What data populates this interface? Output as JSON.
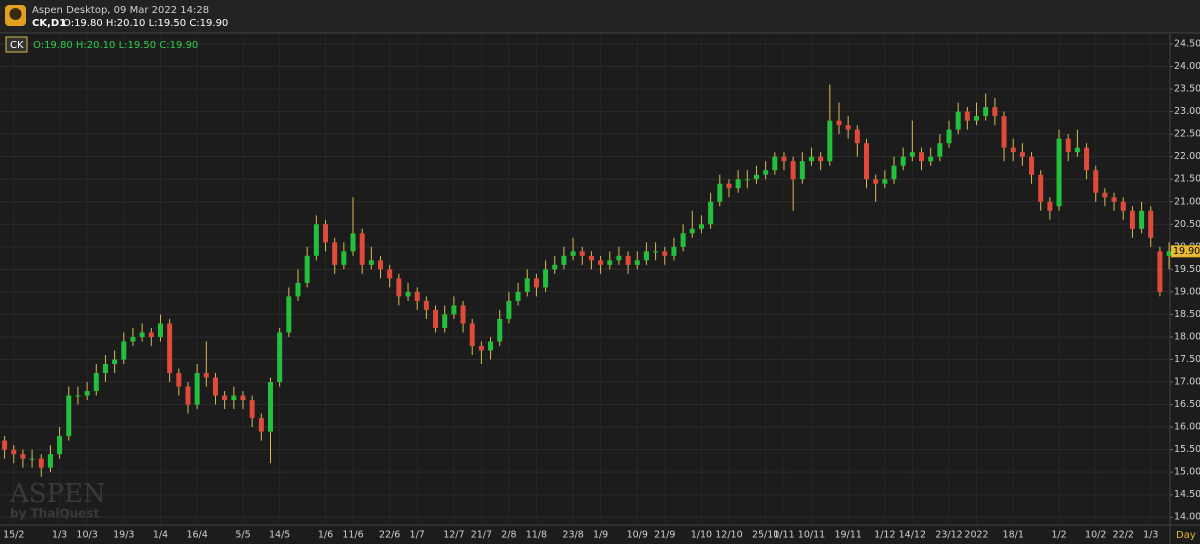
{
  "header": {
    "title": "Aspen Desktop, 09 Mar 2022 14:28",
    "symbol": "CK,D1",
    "quote": "O:19.80 H:20.10 L:19.50 C:19.90"
  },
  "chart_data": {
    "type": "candlestick",
    "legend": {
      "symbol": "CK",
      "quote": "O:19.80 H:20.10 L:19.50 C:19.90"
    },
    "watermark": {
      "brand": "ASPEN",
      "by": "by ThaiQuest"
    },
    "period": "Day",
    "up_color": "#22c03c",
    "down_color": "#e04a3a",
    "wick_color": "#d9bb55",
    "grid": true,
    "xlim": [
      -0.5,
      127.1
    ],
    "ylim": [
      13.85,
      24.7
    ],
    "last_price": {
      "value": 19.9,
      "label": "19.90"
    },
    "yticks": [
      {
        "value": 14,
        "label": "14.00"
      },
      {
        "value": 14.5,
        "label": "14.50"
      },
      {
        "value": 15,
        "label": "15.00"
      },
      {
        "value": 15.5,
        "label": "15.50"
      },
      {
        "value": 16,
        "label": "16.00"
      },
      {
        "value": 16.5,
        "label": "16.50"
      },
      {
        "value": 17,
        "label": "17.00"
      },
      {
        "value": 17.5,
        "label": "17.50"
      },
      {
        "value": 18,
        "label": "18.00"
      },
      {
        "value": 18.5,
        "label": "18.50"
      },
      {
        "value": 19,
        "label": "19.00"
      },
      {
        "value": 19.5,
        "label": "19.50"
      },
      {
        "value": 20,
        "label": "20.00"
      },
      {
        "value": 20.5,
        "label": "20.50"
      },
      {
        "value": 21,
        "label": "21.00"
      },
      {
        "value": 21.5,
        "label": "21.50"
      },
      {
        "value": 22,
        "label": "22.00"
      },
      {
        "value": 22.5,
        "label": "22.50"
      },
      {
        "value": 23,
        "label": "23.00"
      },
      {
        "value": 23.5,
        "label": "23.50"
      },
      {
        "value": 24,
        "label": "24.00"
      },
      {
        "value": 24.5,
        "label": "24.50"
      }
    ],
    "xticks": [
      {
        "value": 1,
        "label": "15/2"
      },
      {
        "value": 6,
        "label": "1/3"
      },
      {
        "value": 9,
        "label": "10/3"
      },
      {
        "value": 13,
        "label": "19/3"
      },
      {
        "value": 17,
        "label": "1/4"
      },
      {
        "value": 21,
        "label": "16/4"
      },
      {
        "value": 26,
        "label": "5/5"
      },
      {
        "value": 30,
        "label": "14/5"
      },
      {
        "value": 35,
        "label": "1/6"
      },
      {
        "value": 38,
        "label": "11/6"
      },
      {
        "value": 42,
        "label": "22/6"
      },
      {
        "value": 45,
        "label": "1/7"
      },
      {
        "value": 49,
        "label": "12/7"
      },
      {
        "value": 52,
        "label": "21/7"
      },
      {
        "value": 55,
        "label": "2/8"
      },
      {
        "value": 58,
        "label": "11/8"
      },
      {
        "value": 62,
        "label": "23/8"
      },
      {
        "value": 65,
        "label": "1/9"
      },
      {
        "value": 69,
        "label": "10/9"
      },
      {
        "value": 72,
        "label": "21/9"
      },
      {
        "value": 76,
        "label": "1/10"
      },
      {
        "value": 79,
        "label": "12/10"
      },
      {
        "value": 83,
        "label": "25/10"
      },
      {
        "value": 85,
        "label": "1/11"
      },
      {
        "value": 88,
        "label": "10/11"
      },
      {
        "value": 92,
        "label": "19/11"
      },
      {
        "value": 96,
        "label": "1/12"
      },
      {
        "value": 99,
        "label": "14/12"
      },
      {
        "value": 103,
        "label": "23/12"
      },
      {
        "value": 106,
        "label": "2022"
      },
      {
        "value": 110,
        "label": "18/1"
      },
      {
        "value": 115,
        "label": "1/2"
      },
      {
        "value": 119,
        "label": "10/2"
      },
      {
        "value": 122,
        "label": "22/2"
      },
      {
        "value": 125,
        "label": "1/3"
      }
    ],
    "open": [
      15.7,
      15.5,
      15.4,
      15.3,
      15.3,
      15.1,
      15.4,
      15.8,
      16.7,
      16.7,
      16.8,
      17.2,
      17.4,
      17.5,
      17.9,
      18.0,
      18.1,
      18.0,
      18.3,
      17.2,
      16.9,
      16.5,
      17.2,
      17.1,
      16.7,
      16.6,
      16.7,
      16.6,
      16.2,
      15.9,
      17.0,
      18.1,
      18.9,
      19.2,
      19.8,
      20.5,
      20.1,
      19.6,
      19.9,
      20.3,
      19.6,
      19.7,
      19.5,
      19.3,
      18.9,
      19.0,
      18.8,
      18.6,
      18.2,
      18.5,
      18.7,
      18.3,
      17.8,
      17.7,
      17.9,
      18.4,
      18.8,
      19.0,
      19.3,
      19.1,
      19.5,
      19.6,
      19.8,
      19.9,
      19.8,
      19.7,
      19.6,
      19.7,
      19.8,
      19.6,
      19.7,
      19.9,
      19.9,
      19.8,
      20.0,
      20.3,
      20.4,
      20.5,
      21.0,
      21.4,
      21.3,
      21.5,
      21.5,
      21.6,
      21.7,
      22.0,
      21.9,
      21.5,
      21.9,
      22.0,
      21.9,
      22.8,
      22.7,
      22.6,
      22.3,
      21.5,
      21.4,
      21.5,
      21.8,
      22.0,
      22.1,
      21.9,
      22.0,
      22.3,
      22.6,
      23.0,
      22.8,
      22.9,
      23.1,
      22.9,
      22.2,
      22.1,
      22.0,
      21.6,
      21.0,
      20.9,
      22.4,
      22.1,
      22.2,
      21.7,
      21.2,
      21.1,
      21.0,
      20.8,
      20.4,
      20.8,
      19.9,
      19.8
    ],
    "high": [
      15.8,
      15.6,
      15.5,
      15.5,
      15.4,
      15.6,
      16.0,
      16.9,
      16.9,
      17.0,
      17.4,
      17.6,
      17.7,
      18.1,
      18.2,
      18.3,
      18.2,
      18.5,
      18.4,
      17.3,
      17.0,
      17.4,
      17.9,
      17.2,
      16.8,
      16.9,
      16.8,
      16.7,
      16.3,
      17.1,
      18.2,
      19.1,
      19.5,
      20.0,
      20.7,
      20.6,
      20.2,
      20.1,
      21.1,
      20.4,
      20.0,
      19.8,
      19.6,
      19.4,
      19.2,
      19.1,
      18.9,
      18.7,
      18.7,
      18.9,
      18.8,
      18.4,
      17.9,
      18.0,
      18.6,
      19.0,
      19.2,
      19.5,
      19.4,
      19.7,
      19.8,
      20.0,
      20.2,
      20.0,
      19.9,
      19.8,
      19.9,
      20.0,
      19.9,
      19.9,
      20.1,
      20.1,
      20.0,
      20.2,
      20.5,
      20.8,
      20.7,
      21.2,
      21.6,
      21.5,
      21.7,
      21.7,
      21.8,
      21.9,
      22.1,
      22.1,
      22.0,
      22.1,
      22.2,
      22.1,
      23.6,
      23.2,
      22.9,
      22.7,
      22.4,
      21.6,
      21.7,
      22.0,
      22.2,
      22.8,
      22.2,
      22.2,
      22.5,
      22.8,
      23.2,
      23.1,
      23.2,
      23.4,
      23.3,
      23.0,
      22.4,
      22.3,
      22.1,
      21.7,
      21.1,
      22.6,
      22.5,
      22.6,
      22.3,
      21.8,
      21.3,
      21.2,
      21.1,
      20.9,
      21.0,
      20.9,
      20.0,
      20.1
    ],
    "low": [
      15.3,
      15.2,
      15.1,
      15.1,
      14.9,
      15.0,
      15.3,
      15.7,
      16.5,
      16.6,
      16.7,
      17.0,
      17.2,
      17.4,
      17.8,
      17.9,
      17.8,
      17.9,
      17.0,
      16.7,
      16.3,
      16.4,
      16.9,
      16.5,
      16.4,
      16.4,
      16.4,
      16.0,
      15.7,
      15.2,
      16.9,
      18.0,
      18.8,
      19.1,
      19.7,
      19.9,
      19.4,
      19.5,
      19.8,
      19.4,
      19.5,
      19.3,
      19.1,
      18.7,
      18.8,
      18.6,
      18.4,
      18.1,
      18.1,
      18.4,
      18.1,
      17.6,
      17.4,
      17.5,
      17.8,
      18.3,
      18.7,
      18.9,
      18.9,
      19.0,
      19.4,
      19.5,
      19.7,
      19.6,
      19.5,
      19.4,
      19.5,
      19.6,
      19.4,
      19.5,
      19.6,
      19.7,
      19.6,
      19.7,
      19.9,
      20.2,
      20.3,
      20.4,
      20.9,
      21.1,
      21.2,
      21.3,
      21.4,
      21.5,
      21.6,
      21.7,
      20.8,
      21.4,
      21.8,
      21.7,
      21.8,
      22.5,
      22.4,
      22.0,
      21.3,
      21.0,
      21.3,
      21.4,
      21.7,
      21.9,
      21.7,
      21.8,
      21.9,
      22.2,
      22.5,
      22.6,
      22.7,
      22.8,
      22.7,
      21.9,
      21.9,
      21.8,
      21.4,
      20.8,
      20.6,
      20.8,
      21.9,
      22.0,
      21.5,
      21.0,
      20.9,
      20.8,
      20.6,
      20.2,
      20.3,
      20.0,
      18.9,
      19.5
    ],
    "close": [
      15.5,
      15.4,
      15.3,
      15.3,
      15.1,
      15.4,
      15.8,
      16.7,
      16.7,
      16.8,
      17.2,
      17.4,
      17.5,
      17.9,
      18.0,
      18.1,
      18.0,
      18.3,
      17.2,
      16.9,
      16.5,
      17.2,
      17.1,
      16.7,
      16.6,
      16.7,
      16.6,
      16.2,
      15.9,
      17.0,
      18.1,
      18.9,
      19.2,
      19.8,
      20.5,
      20.1,
      19.6,
      19.9,
      20.3,
      19.6,
      19.7,
      19.5,
      19.3,
      18.9,
      19.0,
      18.8,
      18.6,
      18.2,
      18.5,
      18.7,
      18.3,
      17.8,
      17.7,
      17.9,
      18.4,
      18.8,
      19.0,
      19.3,
      19.1,
      19.5,
      19.6,
      19.8,
      19.9,
      19.8,
      19.7,
      19.6,
      19.7,
      19.8,
      19.6,
      19.7,
      19.9,
      19.9,
      19.8,
      20.0,
      20.3,
      20.4,
      20.5,
      21.0,
      21.4,
      21.3,
      21.5,
      21.5,
      21.6,
      21.7,
      22.0,
      21.9,
      21.5,
      21.9,
      22.0,
      21.9,
      22.8,
      22.7,
      22.6,
      22.3,
      21.5,
      21.4,
      21.5,
      21.8,
      22.0,
      22.1,
      21.9,
      22.0,
      22.3,
      22.6,
      23.0,
      22.8,
      22.9,
      23.1,
      22.9,
      22.2,
      22.1,
      22.0,
      21.6,
      21.0,
      20.8,
      22.4,
      22.1,
      22.2,
      21.7,
      21.2,
      21.1,
      21.0,
      20.8,
      20.4,
      20.8,
      20.2,
      19.0,
      19.9
    ]
  }
}
